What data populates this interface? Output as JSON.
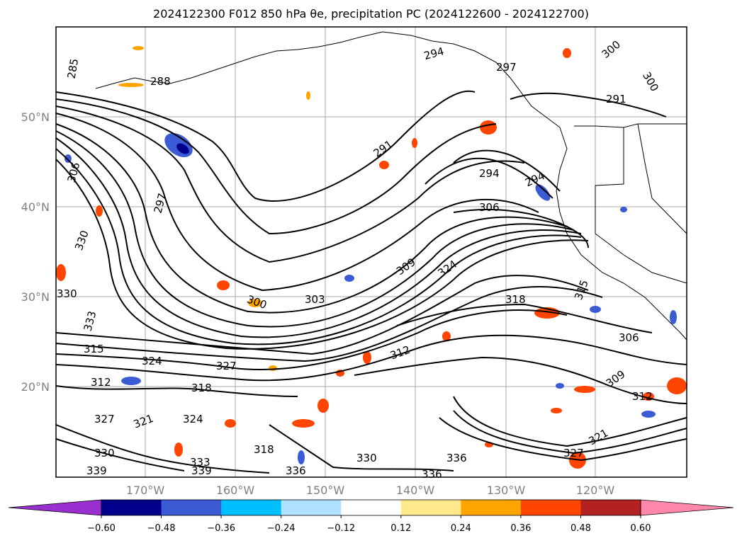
{
  "title": {
    "text": "2024122300 F012 850 hPa θe, precipitation PC (2024122600 - 2024122700)"
  },
  "lat_labels": [
    "50°N",
    "40°N",
    "30°N",
    "20°N"
  ],
  "lon_labels": [
    "170°W",
    "160°W",
    "150°W",
    "140°W",
    "130°W",
    "120°W"
  ],
  "contour_labels": [
    "285",
    "288",
    "294",
    "297",
    "300",
    "300",
    "291",
    "291",
    "294",
    "294",
    "306",
    "309",
    "324",
    "318",
    "315",
    "303",
    "300",
    "330",
    "333",
    "315",
    "312",
    "324",
    "327",
    "312",
    "318",
    "324",
    "327",
    "321",
    "318",
    "333",
    "336",
    "330",
    "336",
    "339",
    "339",
    "336",
    "330",
    "306",
    "309",
    "312",
    "321",
    "327",
    "330",
    "306",
    "297"
  ],
  "colorbar": {
    "colors": [
      "#9a2fd0",
      "#00008c",
      "#3a5bd4",
      "#00bfff",
      "#b0e2ff",
      "#ffffff",
      "#ffe98a",
      "#ffa500",
      "#ff4500",
      "#b22222",
      "#ff88aa"
    ],
    "tick_labels": [
      "−0.60",
      "−0.48",
      "−0.36",
      "−0.24",
      "−0.12",
      "0.12",
      "0.24",
      "0.36",
      "0.48",
      "0.60"
    ]
  },
  "colors": {
    "grid": "#aaaaaa",
    "axis_label": "#808080",
    "contour": "#000000"
  }
}
